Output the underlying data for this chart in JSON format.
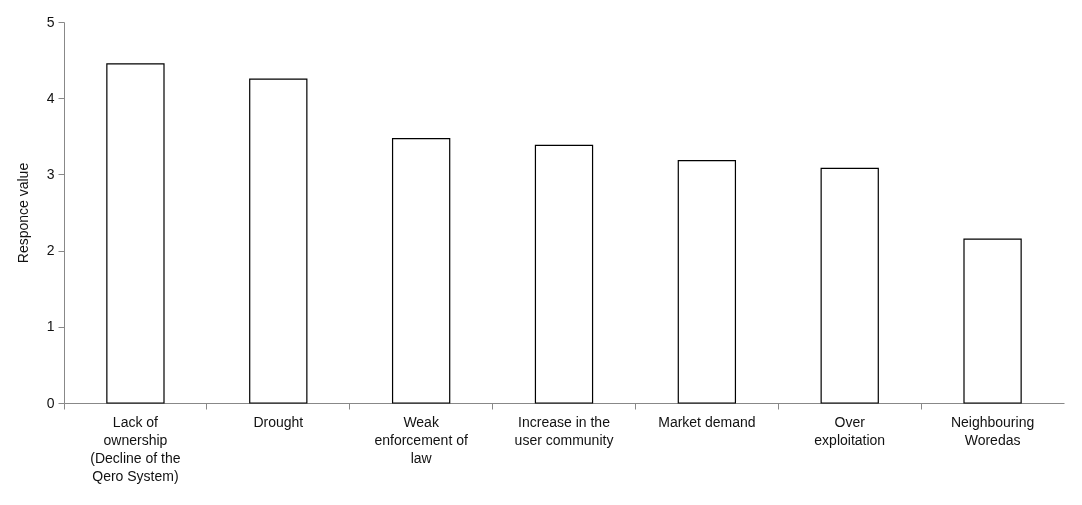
{
  "chart_data": {
    "type": "bar",
    "ylabel": "Responce value",
    "categories": [
      "Lack of ownership (Decline of the Qero System)",
      "Drought",
      "Weak enforcement of law",
      "Increase in the user community",
      "Market demand",
      "Over exploitation",
      "Neighbouring Woredas"
    ],
    "values": [
      4.45,
      4.25,
      3.47,
      3.38,
      3.18,
      3.08,
      2.15
    ],
    "color": "#ffffff",
    "ylim": [
      0,
      5
    ],
    "yticks": [
      0,
      1,
      2,
      3,
      4,
      5
    ],
    "grid": false
  }
}
